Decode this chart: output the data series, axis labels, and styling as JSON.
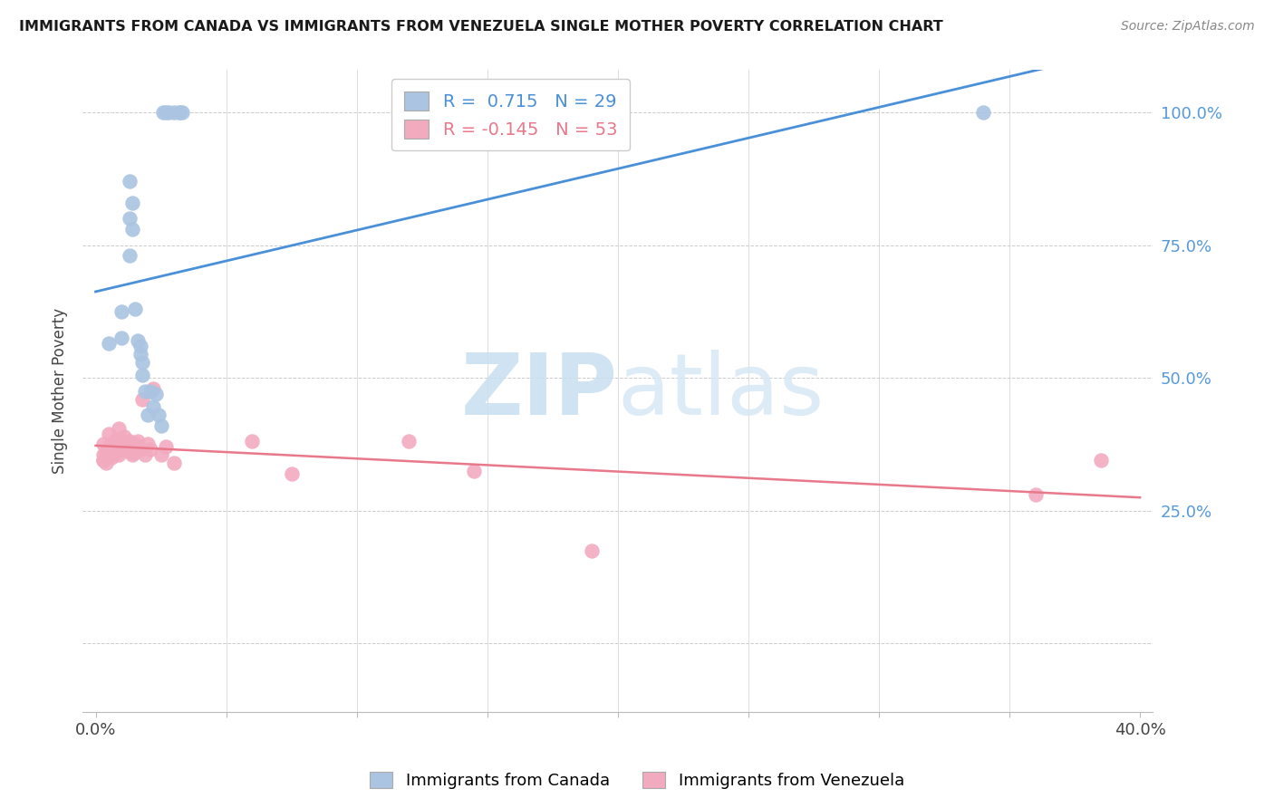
{
  "title": "IMMIGRANTS FROM CANADA VS IMMIGRANTS FROM VENEZUELA SINGLE MOTHER POVERTY CORRELATION CHART",
  "source": "Source: ZipAtlas.com",
  "ylabel": "Single Mother Poverty",
  "legend_label_canada": "Immigrants from Canada",
  "legend_label_venezuela": "Immigrants from Venezuela",
  "watermark_zip": "ZIP",
  "watermark_atlas": "atlas",
  "canada_R": 0.715,
  "canada_N": 29,
  "venezuela_R": -0.145,
  "venezuela_N": 53,
  "canada_color": "#aac4e2",
  "venezuela_color": "#f2aabf",
  "canada_line_color": "#4a90d9",
  "venezuela_line_color": "#e8788a",
  "xlim": [
    0.0,
    0.4
  ],
  "ylim": [
    -0.13,
    1.08
  ],
  "xticks": [
    0.0,
    0.05,
    0.1,
    0.15,
    0.2,
    0.25,
    0.3,
    0.35,
    0.4
  ],
  "xtick_labels_show": [
    "0.0%",
    "",
    "",
    "",
    "",
    "",
    "",
    "",
    "40.0%"
  ],
  "yticks": [
    0.0,
    0.25,
    0.5,
    0.75,
    1.0
  ],
  "ytick_labels_right": [
    "25.0%",
    "50.0%",
    "75.0%",
    "100.0%"
  ],
  "canada_x": [
    0.005,
    0.01,
    0.01,
    0.013,
    0.013,
    0.013,
    0.014,
    0.014,
    0.015,
    0.016,
    0.017,
    0.017,
    0.018,
    0.018,
    0.019,
    0.02,
    0.021,
    0.022,
    0.023,
    0.024,
    0.025,
    0.026,
    0.027,
    0.028,
    0.03,
    0.032,
    0.032,
    0.033,
    0.34
  ],
  "canada_y": [
    0.565,
    0.575,
    0.625,
    0.73,
    0.8,
    0.87,
    0.78,
    0.83,
    0.63,
    0.57,
    0.545,
    0.56,
    0.505,
    0.53,
    0.475,
    0.43,
    0.475,
    0.445,
    0.47,
    0.43,
    0.41,
    1.0,
    1.0,
    1.0,
    1.0,
    1.0,
    1.0,
    1.0,
    1.0
  ],
  "venezuela_x": [
    0.003,
    0.003,
    0.003,
    0.003,
    0.004,
    0.004,
    0.005,
    0.005,
    0.005,
    0.005,
    0.006,
    0.006,
    0.006,
    0.007,
    0.007,
    0.007,
    0.008,
    0.008,
    0.008,
    0.009,
    0.009,
    0.009,
    0.01,
    0.01,
    0.01,
    0.011,
    0.011,
    0.012,
    0.012,
    0.013,
    0.013,
    0.014,
    0.014,
    0.015,
    0.015,
    0.016,
    0.016,
    0.017,
    0.018,
    0.019,
    0.02,
    0.021,
    0.022,
    0.025,
    0.027,
    0.03,
    0.06,
    0.075,
    0.12,
    0.145,
    0.19,
    0.36,
    0.385
  ],
  "venezuela_y": [
    0.345,
    0.355,
    0.345,
    0.375,
    0.34,
    0.36,
    0.355,
    0.37,
    0.365,
    0.395,
    0.35,
    0.355,
    0.36,
    0.375,
    0.38,
    0.37,
    0.38,
    0.385,
    0.36,
    0.405,
    0.355,
    0.365,
    0.38,
    0.365,
    0.375,
    0.38,
    0.39,
    0.37,
    0.365,
    0.36,
    0.38,
    0.36,
    0.355,
    0.375,
    0.36,
    0.37,
    0.38,
    0.365,
    0.46,
    0.355,
    0.375,
    0.365,
    0.48,
    0.355,
    0.37,
    0.34,
    0.38,
    0.32,
    0.38,
    0.325,
    0.175,
    0.28,
    0.345
  ]
}
